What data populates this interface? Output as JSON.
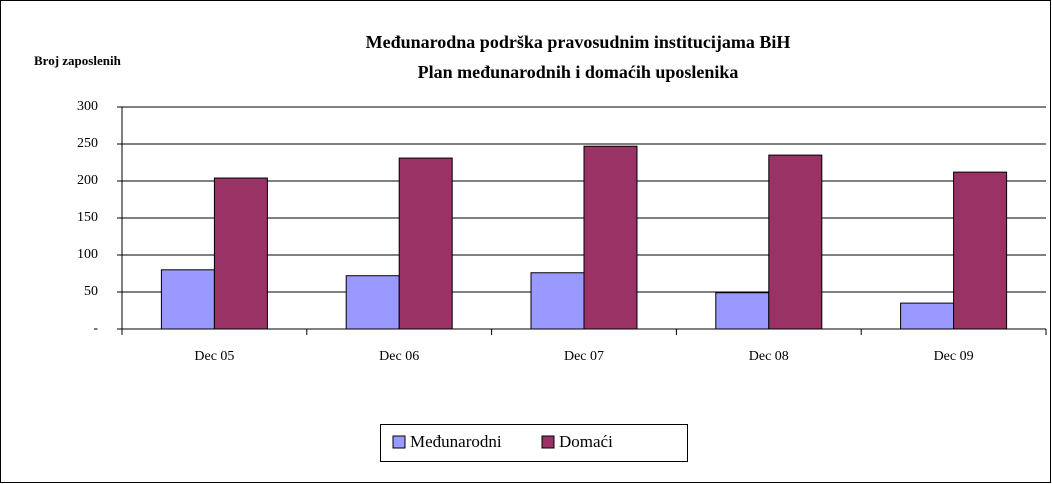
{
  "chart_data": {
    "type": "bar",
    "title": "Međunarodna podrška pravosudnim institucijama BiH",
    "subtitle": "Plan međunarodnih i domaćih uposlenika",
    "y_label": "Broj zaposlenih",
    "categories": [
      "Dec 05",
      "Dec 06",
      "Dec 07",
      "Dec 08",
      "Dec 09"
    ],
    "series": [
      {
        "name": "Međunarodni",
        "color": "#9999ff",
        "values": [
          80,
          72,
          76,
          49,
          35
        ]
      },
      {
        "name": "Domaći",
        "color": "#993366",
        "values": [
          204,
          231,
          247,
          235,
          212
        ]
      }
    ],
    "ylim": [
      0,
      300
    ],
    "yticks": [
      {
        "value": 0,
        "label": "-"
      },
      50,
      100,
      150,
      200,
      250,
      300
    ],
    "grid": true,
    "legend": "bottom"
  }
}
